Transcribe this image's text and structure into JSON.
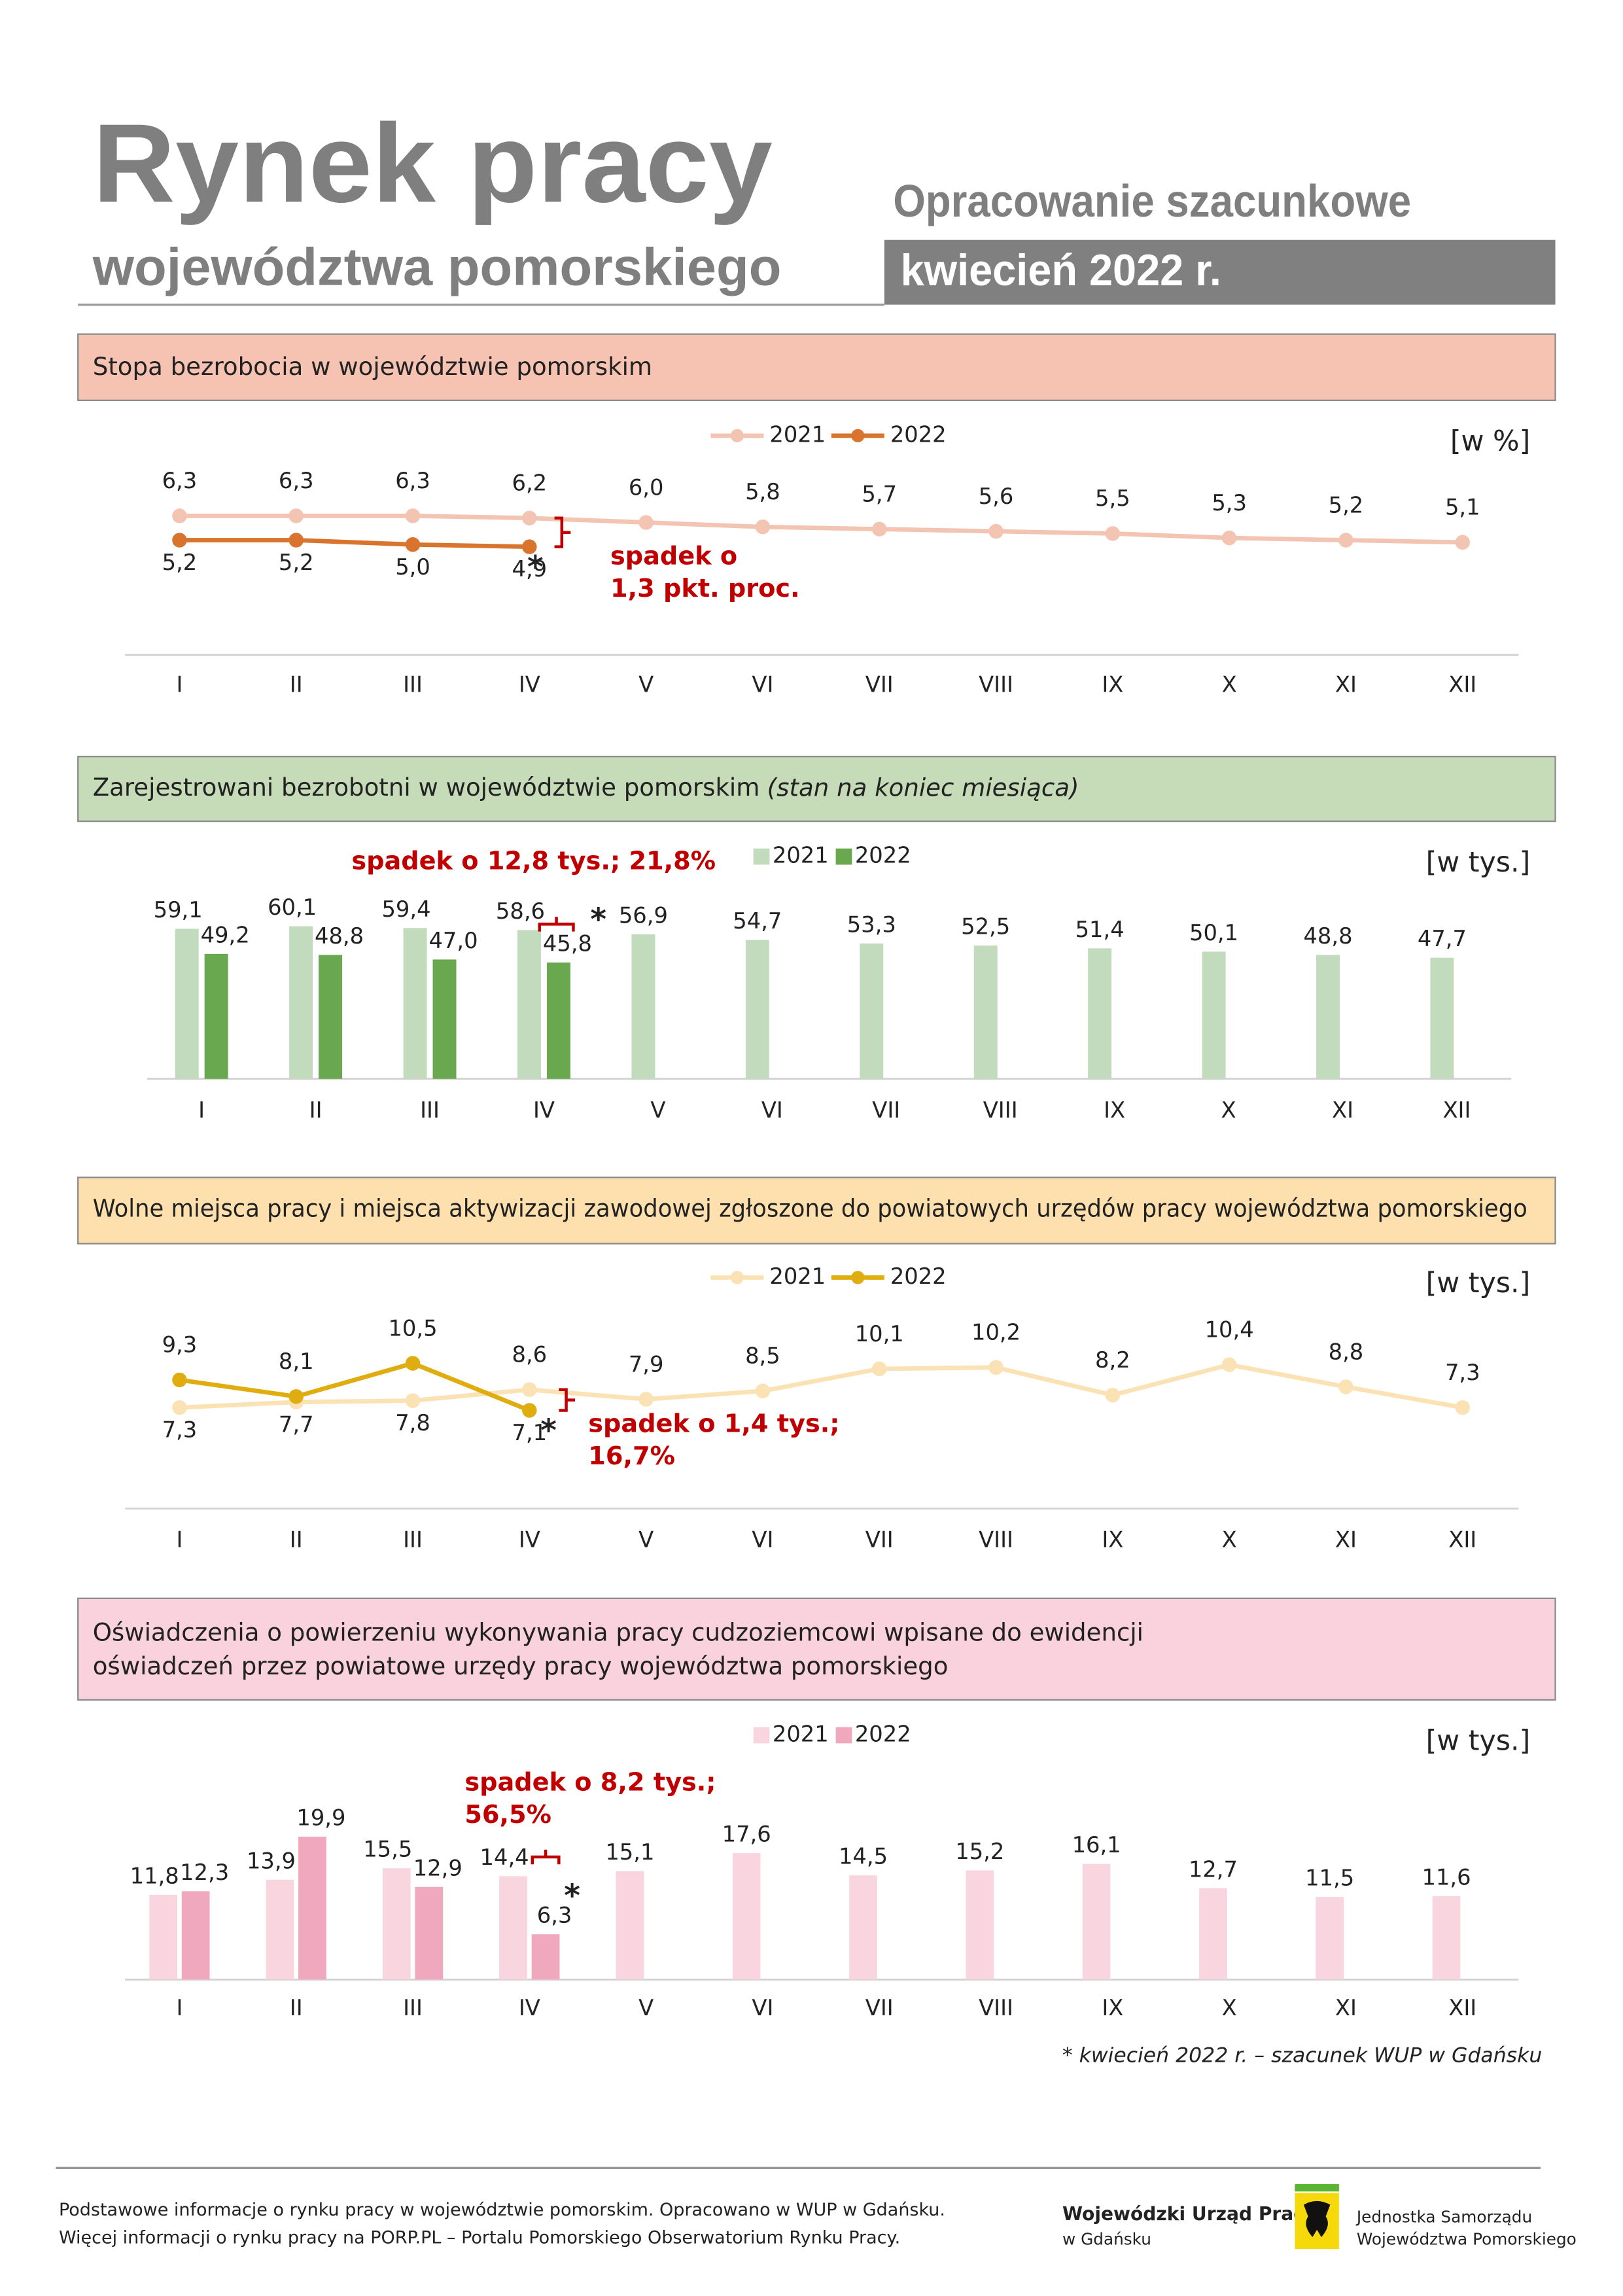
{
  "header": {
    "title": "Rynek pracy",
    "subtitle": "województwa pomorskiego",
    "note": "Opracowanie szacunkowe",
    "period": "kwiecień 2022 r."
  },
  "chart_data": [
    {
      "type": "line",
      "title": "Stopa bezrobocia w województwie pomorskim",
      "title_box_color": "#f6c3b2",
      "unit": "[w %]",
      "categories": [
        "I",
        "II",
        "III",
        "IV",
        "V",
        "VI",
        "VII",
        "VIII",
        "IX",
        "X",
        "XI",
        "XII"
      ],
      "ylim": [
        0,
        10
      ],
      "series": [
        {
          "name": "2021",
          "color": "#f4c4b2",
          "values": [
            6.3,
            6.3,
            6.3,
            6.2,
            6.0,
            5.8,
            5.7,
            5.6,
            5.5,
            5.3,
            5.2,
            5.1
          ],
          "value_labels": [
            "6,3",
            "6,3",
            "6,3",
            "6,2",
            "6,0",
            "5,8",
            "5,7",
            "5,6",
            "5,5",
            "5,3",
            "5,2",
            "5,1"
          ]
        },
        {
          "name": "2022",
          "color": "#d9742e",
          "values": [
            5.2,
            5.2,
            5.0,
            4.9,
            null,
            null,
            null,
            null,
            null,
            null,
            null,
            null
          ],
          "value_labels": [
            "5,2",
            "5,2",
            "5,0",
            "4,9",
            null,
            null,
            null,
            null,
            null,
            null,
            null,
            null
          ]
        }
      ],
      "annotation": [
        "spadek o",
        "1,3 pkt. proc."
      ],
      "marker": "*"
    },
    {
      "type": "bar",
      "title": "Zarejestrowani bezrobotni w województwie pomorskim",
      "title_note": "(stan na koniec miesiąca)",
      "title_box_color": "#c6dcb8",
      "unit": "[w tys.]",
      "categories": [
        "I",
        "II",
        "III",
        "IV",
        "V",
        "VI",
        "VII",
        "VIII",
        "IX",
        "X",
        "XI",
        "XII"
      ],
      "ylim": [
        0,
        80
      ],
      "series": [
        {
          "name": "2021",
          "color": "#c3dbbd",
          "values": [
            59.1,
            60.1,
            59.4,
            58.6,
            56.9,
            54.7,
            53.3,
            52.5,
            51.4,
            50.1,
            48.8,
            47.7
          ],
          "value_labels": [
            "59,1",
            "60,1",
            "59,4",
            "58,6",
            "56,9",
            "54,7",
            "53,3",
            "52,5",
            "51,4",
            "50,1",
            "48,8",
            "47,7"
          ]
        },
        {
          "name": "2022",
          "color": "#6aa84f",
          "values": [
            49.2,
            48.8,
            47.0,
            45.8,
            null,
            null,
            null,
            null,
            null,
            null,
            null,
            null
          ],
          "value_labels": [
            "49,2",
            "48,8",
            "47,0",
            "45,8",
            null,
            null,
            null,
            null,
            null,
            null,
            null,
            null
          ]
        }
      ],
      "annotation": [
        "spadek o 12,8 tys.; 21,8%"
      ],
      "marker": "*"
    },
    {
      "type": "line",
      "title": "Wolne miejsca pracy i miejsca aktywizacji zawodowej zgłoszone do powiatowych urzędów pracy województwa pomorskiego",
      "title_box_color": "#fde0ad",
      "unit": "[w tys.]",
      "categories": [
        "I",
        "II",
        "III",
        "IV",
        "V",
        "VI",
        "VII",
        "VIII",
        "IX",
        "X",
        "XI",
        "XII"
      ],
      "ylim": [
        0,
        15
      ],
      "series": [
        {
          "name": "2021",
          "color": "#fbe2b4",
          "values": [
            7.3,
            7.7,
            7.8,
            8.6,
            7.9,
            8.5,
            10.1,
            10.2,
            8.2,
            10.4,
            8.8,
            7.3
          ],
          "value_labels": [
            "7,3",
            "7,7",
            "7,8",
            "8,6",
            "7,9",
            "8,5",
            "10,1",
            "10,2",
            "8,2",
            "10,4",
            "8,8",
            "7,3"
          ]
        },
        {
          "name": "2022",
          "color": "#e0ad10",
          "values": [
            9.3,
            8.1,
            10.5,
            7.1,
            null,
            null,
            null,
            null,
            null,
            null,
            null,
            null
          ],
          "value_labels": [
            "9,3",
            "8,1",
            "10,5",
            "7,1",
            null,
            null,
            null,
            null,
            null,
            null,
            null,
            null
          ]
        }
      ],
      "annotation": [
        "spadek o 1,4 tys.;",
        "16,7%"
      ],
      "marker": "*"
    },
    {
      "type": "bar",
      "title": [
        "Oświadczenia o powierzeniu wykonywania pracy cudzoziemcowi wpisane do ewidencji",
        "oświadczeń przez powiatowe urzędy pracy województwa pomorskiego"
      ],
      "title_box_color": "#f9d2dd",
      "unit": "[w tys.]",
      "categories": [
        "I",
        "II",
        "III",
        "IV",
        "V",
        "VI",
        "VII",
        "VIII",
        "IX",
        "X",
        "XI",
        "XII"
      ],
      "ylim": [
        0,
        25
      ],
      "series": [
        {
          "name": "2021",
          "color": "#f9d5df",
          "values": [
            11.8,
            13.9,
            15.5,
            14.4,
            15.1,
            17.6,
            14.5,
            15.2,
            16.1,
            12.7,
            11.5,
            11.6
          ],
          "value_labels": [
            "11,8",
            "13,9",
            "15,5",
            "14,4",
            "15,1",
            "17,6",
            "14,5",
            "15,2",
            "16,1",
            "12,7",
            "11,5",
            "11,6"
          ]
        },
        {
          "name": "2022",
          "color": "#f0a8bf",
          "values": [
            12.3,
            19.9,
            12.9,
            6.3,
            null,
            null,
            null,
            null,
            null,
            null,
            null,
            null
          ],
          "value_labels": [
            "12,3",
            "19,9",
            "12,9",
            "6,3",
            null,
            null,
            null,
            null,
            null,
            null,
            null,
            null
          ]
        }
      ],
      "annotation": [
        "spadek o 8,2 tys.;",
        "56,5%"
      ],
      "marker": "*"
    }
  ],
  "footnote": "* kwiecień 2022 r. – szacunek WUP w Gdańsku",
  "footer": {
    "lines": [
      "Podstawowe informacje o rynku pracy w województwie pomorskim. Opracowano w WUP w Gdańsku.",
      "Więcej informacji o rynku pracy na PORP.PL – Portalu Pomorskiego Obserwatorium Rynku Pracy."
    ],
    "logo1": [
      "Wojewódzki Urząd Pracy",
      "w Gdańsku"
    ],
    "logo2": [
      "Jednostka Samorządu",
      "Województwa Pomorskiego"
    ]
  }
}
